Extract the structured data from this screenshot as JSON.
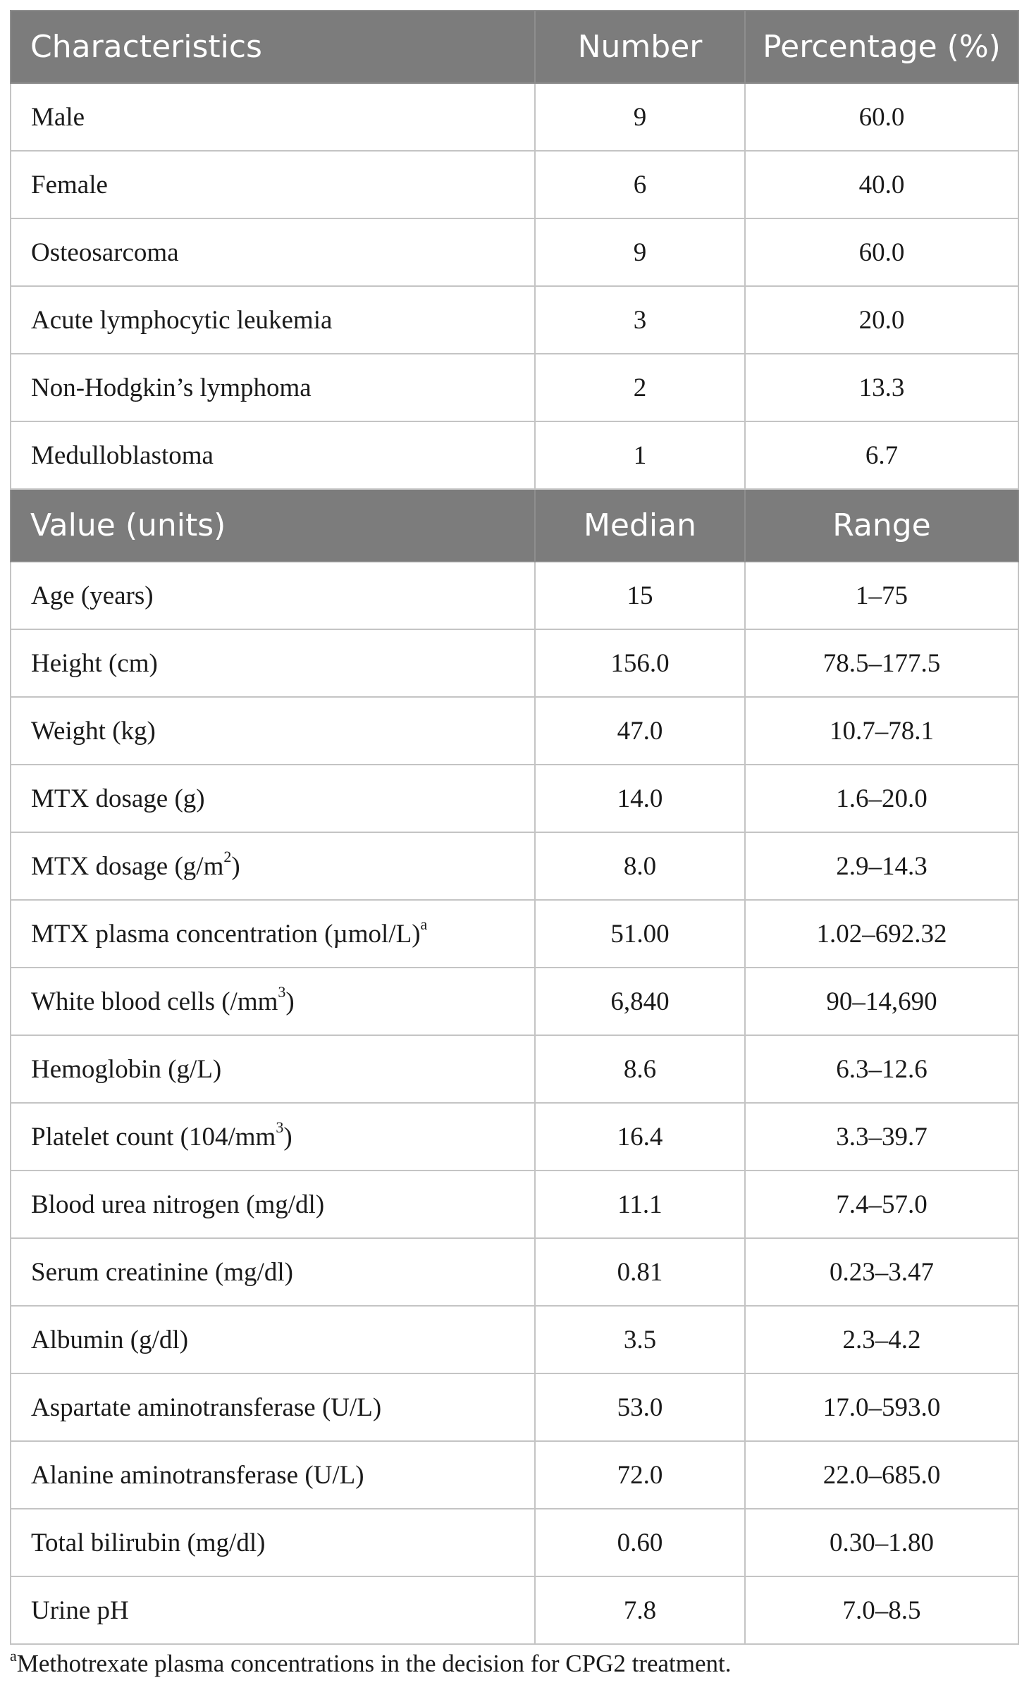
{
  "section1": {
    "headers": [
      "Characteristics",
      "Number",
      "Percentage (%)"
    ],
    "rows": [
      {
        "label": "Male",
        "number": "9",
        "percentage": "60.0"
      },
      {
        "label": "Female",
        "number": "6",
        "percentage": "40.0"
      },
      {
        "label": "Osteosarcoma",
        "number": "9",
        "percentage": "60.0"
      },
      {
        "label": "Acute lymphocytic leukemia",
        "number": "3",
        "percentage": "20.0"
      },
      {
        "label": "Non-Hodgkin’s lymphoma",
        "number": "2",
        "percentage": "13.3"
      },
      {
        "label": "Medulloblastoma",
        "number": "1",
        "percentage": "6.7"
      }
    ]
  },
  "section2": {
    "headers": [
      "Value (units)",
      "Median",
      "Range"
    ],
    "rows": [
      {
        "label": "Age (years)",
        "sup": "",
        "label_after": "",
        "median": "15",
        "range": "1–75"
      },
      {
        "label": "Height (cm)",
        "sup": "",
        "label_after": "",
        "median": "156.0",
        "range": "78.5–177.5"
      },
      {
        "label": "Weight (kg)",
        "sup": "",
        "label_after": "",
        "median": "47.0",
        "range": "10.7–78.1"
      },
      {
        "label": "MTX dosage (g)",
        "sup": "",
        "label_after": "",
        "median": "14.0",
        "range": "1.6–20.0"
      },
      {
        "label": "MTX dosage (g/m",
        "sup": "2",
        "label_after": ")",
        "median": "8.0",
        "range": "2.9–14.3"
      },
      {
        "label": "MTX plasma concentration (µmol/L)",
        "sup": "a",
        "label_after": "",
        "median": "51.00",
        "range": "1.02–692.32"
      },
      {
        "label": "White blood cells (/mm",
        "sup": "3",
        "label_after": ")",
        "median": "6,840",
        "range": "90–14,690"
      },
      {
        "label": "Hemoglobin (g/L)",
        "sup": "",
        "label_after": "",
        "median": "8.6",
        "range": "6.3–12.6"
      },
      {
        "label": "Platelet count (104/mm",
        "sup": "3",
        "label_after": ")",
        "median": "16.4",
        "range": "3.3–39.7"
      },
      {
        "label": "Blood urea nitrogen (mg/dl)",
        "sup": "",
        "label_after": "",
        "median": "11.1",
        "range": "7.4–57.0"
      },
      {
        "label": "Serum creatinine (mg/dl)",
        "sup": "",
        "label_after": "",
        "median": "0.81",
        "range": "0.23–3.47"
      },
      {
        "label": "Albumin (g/dl)",
        "sup": "",
        "label_after": "",
        "median": "3.5",
        "range": "2.3–4.2"
      },
      {
        "label": "Aspartate aminotransferase (U/L)",
        "sup": "",
        "label_after": "",
        "median": "53.0",
        "range": "17.0–593.0"
      },
      {
        "label": "Alanine aminotransferase (U/L)",
        "sup": "",
        "label_after": "",
        "median": "72.0",
        "range": "22.0–685.0"
      },
      {
        "label": "Total bilirubin (mg/dl)",
        "sup": "",
        "label_after": "",
        "median": "0.60",
        "range": "0.30–1.80"
      },
      {
        "label": "Urine pH",
        "sup": "",
        "label_after": "",
        "median": "7.8",
        "range": "7.0–8.5"
      }
    ]
  },
  "footnote": {
    "marker": "a",
    "text": "Methotrexate plasma concentrations in the decision for CPG2 treatment."
  }
}
